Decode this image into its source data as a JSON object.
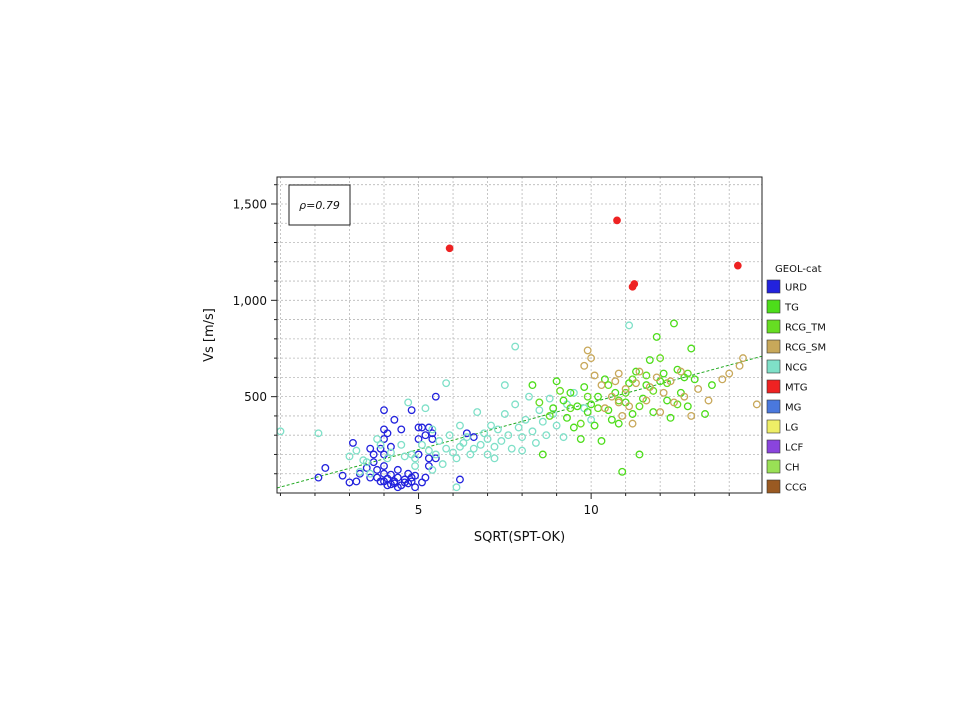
{
  "chart_data": {
    "type": "scatter",
    "xlabel": "SQRT(SPT-OK)",
    "ylabel": "Vs [m/s]",
    "xlim": [
      0.9,
      14.95
    ],
    "ylim": [
      0,
      1640
    ],
    "x_ticks": [
      5,
      10
    ],
    "x_tick_labels": [
      "5",
      "10"
    ],
    "y_ticks": [
      500,
      1000,
      1500
    ],
    "y_tick_labels": [
      "500",
      "1,000",
      "1,500"
    ],
    "grid": true,
    "annotation": "ρ=0.79",
    "legend_title": "GEOL-cat",
    "legend_position": "right",
    "legend": [
      {
        "name": "URD",
        "color": "#2222dd"
      },
      {
        "name": "TG",
        "color": "#4ddd1a"
      },
      {
        "name": "RCG_TM",
        "color": "#66dd22"
      },
      {
        "name": "RCG_SM",
        "color": "#c8a85a"
      },
      {
        "name": "NCG",
        "color": "#7fe0c8"
      },
      {
        "name": "MTG",
        "color": "#ee2222"
      },
      {
        "name": "MG",
        "color": "#4a78dd"
      },
      {
        "name": "LG",
        "color": "#eeee66"
      },
      {
        "name": "LCF",
        "color": "#8a44dd"
      },
      {
        "name": "CH",
        "color": "#99e055"
      },
      {
        "name": "CCG",
        "color": "#9a5a22"
      }
    ],
    "trendline": {
      "x": [
        0.9,
        14.95
      ],
      "y": [
        26,
        710
      ],
      "color": "#22aa22"
    },
    "series": [
      {
        "name": "URD",
        "color": "#2222dd",
        "marker": "open-circle",
        "points": [
          [
            2.1,
            80
          ],
          [
            2.3,
            130
          ],
          [
            2.8,
            90
          ],
          [
            3.0,
            55
          ],
          [
            3.1,
            260
          ],
          [
            3.2,
            60
          ],
          [
            3.3,
            100
          ],
          [
            3.5,
            130
          ],
          [
            3.6,
            80
          ],
          [
            3.6,
            230
          ],
          [
            3.7,
            200
          ],
          [
            3.7,
            160
          ],
          [
            3.8,
            120
          ],
          [
            3.8,
            80
          ],
          [
            3.9,
            230
          ],
          [
            3.9,
            60
          ],
          [
            4.0,
            430
          ],
          [
            4.0,
            330
          ],
          [
            4.0,
            280
          ],
          [
            4.0,
            200
          ],
          [
            4.0,
            140
          ],
          [
            4.0,
            100
          ],
          [
            4.0,
            60
          ],
          [
            4.1,
            40
          ],
          [
            4.1,
            75
          ],
          [
            4.1,
            310
          ],
          [
            4.2,
            240
          ],
          [
            4.2,
            45
          ],
          [
            4.2,
            95
          ],
          [
            4.3,
            380
          ],
          [
            4.3,
            60
          ],
          [
            4.3,
            50
          ],
          [
            4.4,
            120
          ],
          [
            4.4,
            80
          ],
          [
            4.4,
            30
          ],
          [
            4.5,
            330
          ],
          [
            4.5,
            40
          ],
          [
            4.6,
            70
          ],
          [
            4.6,
            55
          ],
          [
            4.7,
            100
          ],
          [
            4.7,
            50
          ],
          [
            4.8,
            430
          ],
          [
            4.8,
            80
          ],
          [
            4.8,
            60
          ],
          [
            4.9,
            90
          ],
          [
            4.9,
            30
          ],
          [
            5.0,
            340
          ],
          [
            5.0,
            280
          ],
          [
            5.0,
            200
          ],
          [
            5.1,
            340
          ],
          [
            5.1,
            55
          ],
          [
            5.2,
            300
          ],
          [
            5.2,
            80
          ],
          [
            5.3,
            340
          ],
          [
            5.3,
            180
          ],
          [
            5.3,
            140
          ],
          [
            5.4,
            310
          ],
          [
            5.4,
            280
          ],
          [
            5.5,
            500
          ],
          [
            5.5,
            180
          ],
          [
            6.2,
            70
          ],
          [
            6.4,
            310
          ],
          [
            6.6,
            290
          ]
        ]
      },
      {
        "name": "NCG",
        "color": "#7fe0c8",
        "marker": "open-circle",
        "points": [
          [
            1.0,
            320
          ],
          [
            2.1,
            310
          ],
          [
            3.0,
            190
          ],
          [
            3.2,
            220
          ],
          [
            3.3,
            110
          ],
          [
            3.4,
            170
          ],
          [
            3.5,
            160
          ],
          [
            3.6,
            100
          ],
          [
            3.8,
            280
          ],
          [
            3.9,
            250
          ],
          [
            4.1,
            180
          ],
          [
            4.2,
            210
          ],
          [
            4.5,
            250
          ],
          [
            4.6,
            190
          ],
          [
            4.7,
            470
          ],
          [
            4.8,
            200
          ],
          [
            4.9,
            140
          ],
          [
            4.9,
            180
          ],
          [
            5.1,
            250
          ],
          [
            5.2,
            440
          ],
          [
            5.3,
            220
          ],
          [
            5.4,
            330
          ],
          [
            5.4,
            120
          ],
          [
            5.5,
            200
          ],
          [
            5.6,
            270
          ],
          [
            5.7,
            150
          ],
          [
            5.8,
            570
          ],
          [
            5.8,
            230
          ],
          [
            5.9,
            300
          ],
          [
            6.0,
            210
          ],
          [
            6.1,
            30
          ],
          [
            6.1,
            180
          ],
          [
            6.2,
            350
          ],
          [
            6.2,
            240
          ],
          [
            6.3,
            260
          ],
          [
            6.4,
            290
          ],
          [
            6.5,
            200
          ],
          [
            6.6,
            230
          ],
          [
            6.7,
            420
          ],
          [
            6.8,
            250
          ],
          [
            6.9,
            310
          ],
          [
            7.0,
            200
          ],
          [
            7.0,
            280
          ],
          [
            7.1,
            350
          ],
          [
            7.2,
            240
          ],
          [
            7.2,
            180
          ],
          [
            7.3,
            330
          ],
          [
            7.4,
            270
          ],
          [
            7.5,
            560
          ],
          [
            7.5,
            410
          ],
          [
            7.6,
            300
          ],
          [
            7.7,
            230
          ],
          [
            7.8,
            760
          ],
          [
            7.8,
            460
          ],
          [
            7.9,
            340
          ],
          [
            8.0,
            290
          ],
          [
            8.0,
            220
          ],
          [
            8.1,
            380
          ],
          [
            8.2,
            500
          ],
          [
            8.3,
            320
          ],
          [
            8.4,
            260
          ],
          [
            8.5,
            430
          ],
          [
            8.6,
            370
          ],
          [
            8.7,
            300
          ],
          [
            8.8,
            490
          ],
          [
            8.9,
            410
          ],
          [
            9.0,
            350
          ],
          [
            9.2,
            290
          ],
          [
            9.3,
            460
          ],
          [
            9.5,
            520
          ],
          [
            9.8,
            440
          ],
          [
            10.0,
            380
          ],
          [
            11.1,
            870
          ]
        ]
      },
      {
        "name": "TG",
        "color": "#4ddd1a",
        "marker": "open-circle",
        "points": [
          [
            8.3,
            560
          ],
          [
            8.6,
            200
          ],
          [
            8.9,
            440
          ],
          [
            9.0,
            580
          ],
          [
            9.2,
            480
          ],
          [
            9.3,
            390
          ],
          [
            9.4,
            520
          ],
          [
            9.5,
            340
          ],
          [
            9.6,
            450
          ],
          [
            9.7,
            280
          ],
          [
            9.8,
            550
          ],
          [
            9.9,
            420
          ],
          [
            10.0,
            460
          ],
          [
            10.1,
            350
          ],
          [
            10.2,
            500
          ],
          [
            10.3,
            270
          ],
          [
            10.4,
            590
          ],
          [
            10.5,
            430
          ],
          [
            10.6,
            380
          ],
          [
            10.7,
            520
          ],
          [
            10.8,
            360
          ],
          [
            10.9,
            110
          ],
          [
            11.0,
            470
          ],
          [
            11.1,
            570
          ],
          [
            11.2,
            410
          ],
          [
            11.3,
            630
          ],
          [
            11.4,
            200
          ],
          [
            11.5,
            490
          ],
          [
            11.6,
            560
          ],
          [
            11.7,
            690
          ],
          [
            11.8,
            420
          ],
          [
            11.9,
            810
          ],
          [
            12.0,
            580
          ],
          [
            12.1,
            620
          ],
          [
            12.2,
            480
          ],
          [
            12.3,
            390
          ],
          [
            12.4,
            880
          ],
          [
            12.5,
            640
          ],
          [
            12.6,
            520
          ],
          [
            12.7,
            600
          ],
          [
            12.8,
            450
          ],
          [
            12.9,
            750
          ],
          [
            13.0,
            590
          ],
          [
            13.3,
            410
          ],
          [
            13.5,
            560
          ]
        ]
      },
      {
        "name": "RCG_TM",
        "color": "#66dd22",
        "marker": "open-circle",
        "points": [
          [
            8.5,
            470
          ],
          [
            8.8,
            400
          ],
          [
            9.1,
            530
          ],
          [
            9.4,
            440
          ],
          [
            9.7,
            360
          ],
          [
            9.9,
            500
          ],
          [
            10.2,
            440
          ],
          [
            10.5,
            560
          ],
          [
            10.8,
            480
          ],
          [
            11.0,
            520
          ],
          [
            11.2,
            590
          ],
          [
            11.4,
            450
          ],
          [
            11.6,
            610
          ],
          [
            11.8,
            530
          ],
          [
            12.0,
            700
          ],
          [
            12.2,
            570
          ],
          [
            12.5,
            460
          ],
          [
            12.8,
            620
          ]
        ]
      },
      {
        "name": "RCG_SM",
        "color": "#c8a85a",
        "marker": "open-circle",
        "points": [
          [
            9.8,
            660
          ],
          [
            9.9,
            740
          ],
          [
            10.0,
            700
          ],
          [
            10.1,
            610
          ],
          [
            10.3,
            560
          ],
          [
            10.4,
            440
          ],
          [
            10.6,
            500
          ],
          [
            10.7,
            580
          ],
          [
            10.8,
            620
          ],
          [
            10.8,
            470
          ],
          [
            10.9,
            400
          ],
          [
            11.0,
            540
          ],
          [
            11.1,
            450
          ],
          [
            11.2,
            360
          ],
          [
            11.3,
            570
          ],
          [
            11.4,
            630
          ],
          [
            11.6,
            480
          ],
          [
            11.7,
            550
          ],
          [
            11.9,
            600
          ],
          [
            12.0,
            420
          ],
          [
            12.1,
            520
          ],
          [
            12.3,
            580
          ],
          [
            12.4,
            470
          ],
          [
            12.6,
            630
          ],
          [
            12.7,
            500
          ],
          [
            12.9,
            400
          ],
          [
            13.1,
            540
          ],
          [
            13.4,
            480
          ],
          [
            13.8,
            590
          ],
          [
            14.0,
            620
          ],
          [
            14.3,
            660
          ],
          [
            14.4,
            700
          ],
          [
            14.8,
            460
          ]
        ]
      },
      {
        "name": "MTG",
        "color": "#ee2222",
        "marker": "filled-circle",
        "points": [
          [
            5.9,
            1270
          ],
          [
            10.75,
            1415
          ],
          [
            11.2,
            1070
          ],
          [
            11.25,
            1085
          ],
          [
            14.25,
            1180
          ]
        ]
      }
    ]
  }
}
